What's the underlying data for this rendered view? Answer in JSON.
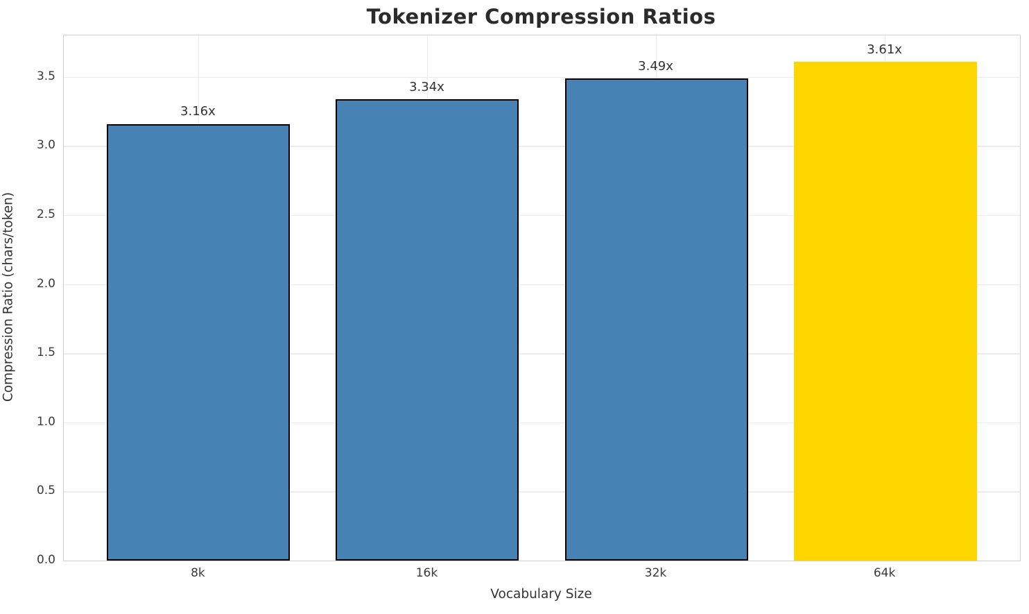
{
  "figure": {
    "title": "Tokenizer Compression Ratios",
    "xlabel": "Vocabulary Size",
    "ylabel": "Compression Ratio (chars/token)"
  },
  "colors": {
    "bar_default": "#4682B4",
    "bar_highlight": "#FFD700",
    "bar_edge": "#000000",
    "grid": "#ebebeb",
    "spine": "#cfcfcf",
    "title_text": "#2b2b2b",
    "tick_text": "#3a3a3a",
    "background": "#ffffff"
  },
  "chart_data": {
    "type": "bar",
    "title": "Tokenizer Compression Ratios",
    "xlabel": "Vocabulary Size",
    "ylabel": "Compression Ratio (chars/token)",
    "categories": [
      "8k",
      "16k",
      "32k",
      "64k"
    ],
    "values": [
      3.16,
      3.34,
      3.49,
      3.61
    ],
    "bar_labels": [
      "3.16x",
      "3.34x",
      "3.49x",
      "3.61x"
    ],
    "bar_colors": [
      "#4682B4",
      "#4682B4",
      "#4682B4",
      "#FFD700"
    ],
    "bar_edge_colors": [
      "#000000",
      "#000000",
      "#000000",
      "none"
    ],
    "highlight_category": "64k",
    "ylim": [
      0,
      3.8
    ],
    "ytick_step": 0.5,
    "ytick_labels": [
      "0.0",
      "0.5",
      "1.0",
      "1.5",
      "2.0",
      "2.5",
      "3.0",
      "3.5"
    ],
    "grid": "on",
    "legend_position": "none",
    "bar_width_fraction": 0.8,
    "x_margin_fraction": 0.589
  }
}
